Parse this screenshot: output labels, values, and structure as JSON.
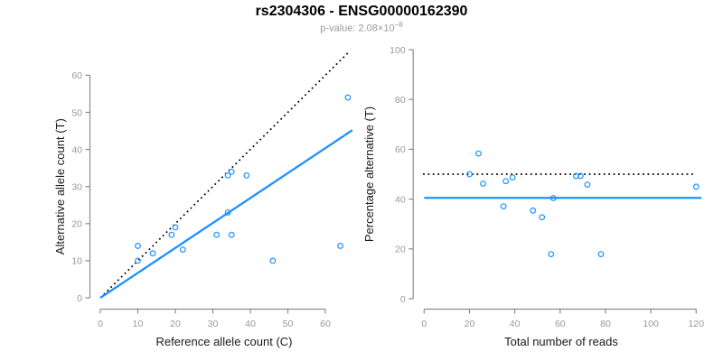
{
  "title": "rs2304306 - ENSG00000162390",
  "subtitle": {
    "text": "p-value: 2.08×10",
    "exponent": "−8"
  },
  "colors": {
    "accent_blue": "#1E90FF",
    "line_black": "#000000",
    "axis_gray": "#8C8C8C",
    "tick_label_gray": "#999999",
    "axis_title_color": "#1A1A1A",
    "background": "#FFFFFF"
  },
  "chart_data": [
    {
      "type": "scatter",
      "xlabel": "Reference allele count (C)",
      "ylabel": "Alternative allele count (T)",
      "xticks": [
        0,
        10,
        20,
        30,
        40,
        50,
        60
      ],
      "yticks": [
        0,
        10,
        20,
        30,
        40,
        50,
        60
      ],
      "xlim": [
        0,
        67
      ],
      "ylim": [
        0,
        67
      ],
      "grid": false,
      "point_color": "#1E90FF",
      "points": [
        [
          10,
          14
        ],
        [
          10,
          10
        ],
        [
          14,
          12
        ],
        [
          19,
          17
        ],
        [
          20,
          19
        ],
        [
          22,
          13
        ],
        [
          31,
          17
        ],
        [
          34,
          33
        ],
        [
          34,
          23
        ],
        [
          35,
          34
        ],
        [
          35,
          17
        ],
        [
          39,
          33
        ],
        [
          46,
          10
        ],
        [
          64,
          14
        ],
        [
          66,
          54
        ]
      ],
      "lines": [
        {
          "name": "identity-line",
          "style": "dotted",
          "color": "#000000",
          "from": [
            0,
            0
          ],
          "to": [
            66.4,
            66.4
          ]
        },
        {
          "name": "fit-line",
          "style": "solid",
          "color": "#1E90FF",
          "from": [
            0,
            0
          ],
          "to": [
            67.2,
            45.2
          ]
        }
      ]
    },
    {
      "type": "scatter",
      "xlabel": "Total number of reads",
      "ylabel": "Percentage alternative (T)",
      "xticks": [
        0,
        20,
        40,
        60,
        80,
        100,
        120
      ],
      "yticks": [
        0,
        20,
        40,
        60,
        80,
        100
      ],
      "xlim": [
        0,
        122
      ],
      "ylim": [
        0,
        100
      ],
      "grid": false,
      "point_color": "#1E90FF",
      "points": [
        [
          20,
          50
        ],
        [
          24,
          58.3
        ],
        [
          26,
          46.2
        ],
        [
          35,
          37.1
        ],
        [
          36,
          47.2
        ],
        [
          39,
          48.7
        ],
        [
          48,
          35.4
        ],
        [
          52,
          32.7
        ],
        [
          56,
          17.9
        ],
        [
          57,
          40.4
        ],
        [
          67,
          49.3
        ],
        [
          69,
          49.3
        ],
        [
          72,
          45.8
        ],
        [
          78,
          17.9
        ],
        [
          120,
          45
        ]
      ],
      "lines": [
        {
          "name": "expected-percentage-line",
          "style": "dotted",
          "color": "#000000",
          "from": [
            -0.5,
            50
          ],
          "to": [
            120,
            50
          ]
        },
        {
          "name": "fit-percentage-line",
          "style": "solid",
          "color": "#1E90FF",
          "from": [
            0,
            40.5
          ],
          "to": [
            122.3,
            40.5
          ]
        }
      ]
    }
  ]
}
